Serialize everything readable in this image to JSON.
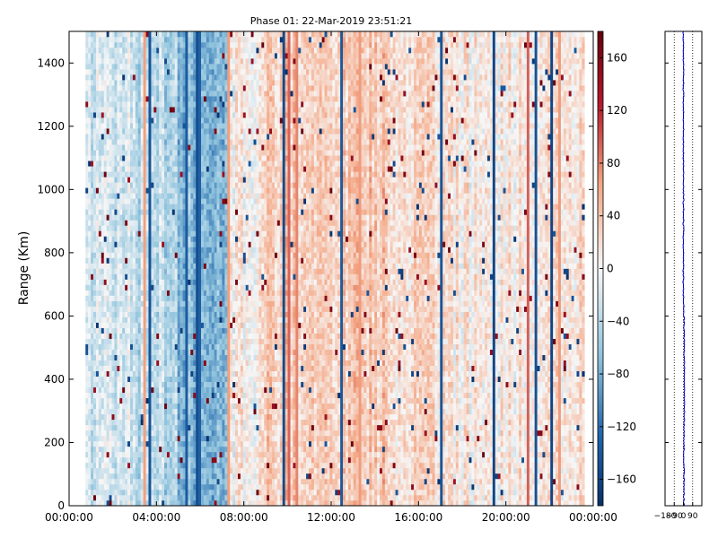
{
  "chart_data": [
    {
      "type": "heatmap",
      "title": "Phase 01: 22-Mar-2019 23:51:21",
      "ylabel": "Range (Km)",
      "xlabel": "",
      "x_tick_labels": [
        "00:00:00",
        "04:00:00",
        "08:00:00",
        "12:00:00",
        "16:00:00",
        "20:00:00",
        "00:00:00"
      ],
      "x_range_hours": [
        0,
        24
      ],
      "data_x_range_hours": [
        0.75,
        23.6
      ],
      "ylim": [
        0,
        1500
      ],
      "y_ticks": [
        0,
        200,
        400,
        600,
        800,
        1000,
        1200,
        1400
      ],
      "colorbar": {
        "range": [
          -180,
          180
        ],
        "tick_values": [
          -160,
          -120,
          -80,
          -40,
          0,
          40,
          80,
          120,
          160
        ],
        "tick_labels": [
          "−160",
          "−120",
          "−80",
          "−40",
          "0",
          "40",
          "80",
          "120",
          "160"
        ],
        "colormap": "RdBu_r",
        "low_color": "#08306b",
        "mid_color": "#f7f7f7",
        "high_color": "#67000d"
      },
      "time_bands": [
        {
          "from_hour": 0.75,
          "to_hour": 3.0,
          "mean_phase": -25
        },
        {
          "from_hour": 3.0,
          "to_hour": 5.0,
          "mean_phase": -40
        },
        {
          "from_hour": 5.0,
          "to_hour": 7.3,
          "mean_phase": -70
        },
        {
          "from_hour": 7.3,
          "to_hour": 8.8,
          "mean_phase": 5
        },
        {
          "from_hour": 8.8,
          "to_hour": 14.5,
          "mean_phase": 35
        },
        {
          "from_hour": 14.5,
          "to_hour": 17.0,
          "mean_phase": 20
        },
        {
          "from_hour": 17.0,
          "to_hour": 20.5,
          "mean_phase": 10
        },
        {
          "from_hour": 20.5,
          "to_hour": 23.6,
          "mean_phase": 15
        }
      ],
      "grid": false,
      "legend": "colorbar-right"
    },
    {
      "type": "line",
      "title": "",
      "xlabel": "",
      "ylabel": "",
      "xlim": [
        -180,
        180
      ],
      "x_tick_labels": [
        "−180",
        "−90",
        "0",
        "90"
      ],
      "ylim": [
        0,
        1500
      ],
      "y_ticks": [
        0,
        200,
        400,
        600,
        800,
        1000,
        1200,
        1400
      ],
      "line_color": "#0000cc",
      "mean_phase_profile": {
        "range_km": [
          0,
          200,
          380,
          600,
          650,
          1500
        ],
        "phase_deg": [
          5,
          5,
          10,
          5,
          0,
          0
        ]
      },
      "vertical_reference_lines": [
        -180,
        -90,
        0,
        90
      ]
    }
  ]
}
